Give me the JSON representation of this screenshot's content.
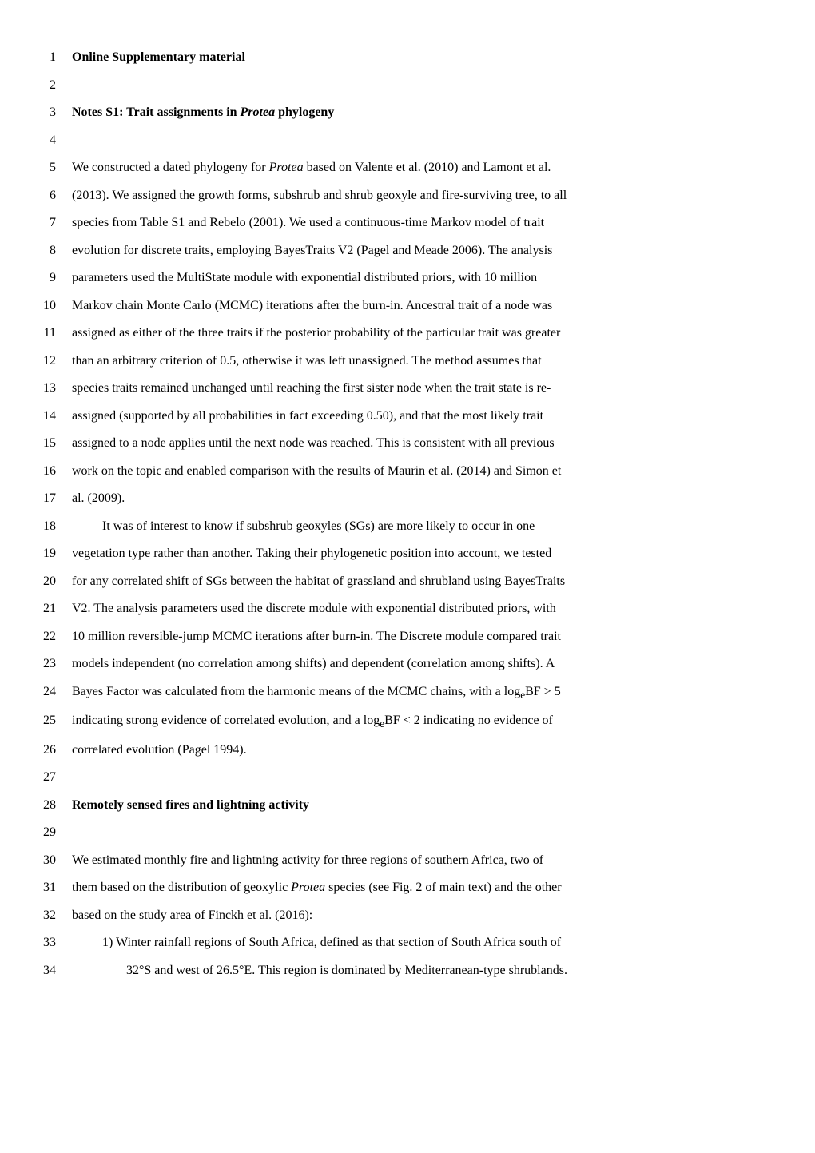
{
  "lines": [
    {
      "num": "1",
      "segments": [
        {
          "text": "Online Supplementary material",
          "bold": true
        }
      ]
    },
    {
      "num": "2",
      "segments": []
    },
    {
      "num": "3",
      "segments": [
        {
          "text": "Notes S1: Trait assignments in ",
          "bold": true
        },
        {
          "text": "Protea",
          "bold": true,
          "italic": true
        },
        {
          "text": " phylogeny",
          "bold": true
        }
      ]
    },
    {
      "num": "4",
      "segments": []
    },
    {
      "num": "5",
      "segments": [
        {
          "text": "We constructed a dated phylogeny for "
        },
        {
          "text": "Protea",
          "italic": true
        },
        {
          "text": " based on Valente et al. (2010) and Lamont et al."
        }
      ]
    },
    {
      "num": "6",
      "segments": [
        {
          "text": "(2013). We assigned the growth forms, subshrub and shrub geoxyle and fire-surviving tree, to all"
        }
      ]
    },
    {
      "num": "7",
      "segments": [
        {
          "text": "species from Table S1 and Rebelo (2001). We used a continuous-time Markov model of trait"
        }
      ]
    },
    {
      "num": "8",
      "segments": [
        {
          "text": "evolution for discrete traits, employing BayesTraits V2 (Pagel and Meade 2006). The analysis"
        }
      ]
    },
    {
      "num": "9",
      "segments": [
        {
          "text": "parameters used the MultiState module with exponential distributed priors, with 10 million"
        }
      ]
    },
    {
      "num": "10",
      "segments": [
        {
          "text": "Markov chain Monte Carlo (MCMC) iterations after the burn-in. Ancestral trait of a node was"
        }
      ]
    },
    {
      "num": "11",
      "segments": [
        {
          "text": "assigned as either of the three traits if the posterior probability of the particular trait was greater"
        }
      ]
    },
    {
      "num": "12",
      "segments": [
        {
          "text": "than an arbitrary criterion of 0.5, otherwise it was left unassigned. The method assumes that"
        }
      ]
    },
    {
      "num": "13",
      "segments": [
        {
          "text": "species traits remained unchanged until reaching the first sister node when the trait state is re-"
        }
      ]
    },
    {
      "num": "14",
      "segments": [
        {
          "text": "assigned (supported by all probabilities in fact exceeding 0.50), and that the most likely trait"
        }
      ]
    },
    {
      "num": "15",
      "segments": [
        {
          "text": "assigned to a node applies until the next node was reached. This is consistent with all previous"
        }
      ]
    },
    {
      "num": "16",
      "segments": [
        {
          "text": "work on the topic and enabled comparison with the results of Maurin et al. (2014) and Simon et"
        }
      ]
    },
    {
      "num": "17",
      "segments": [
        {
          "text": "al. (2009)."
        }
      ]
    },
    {
      "num": "18",
      "segments": [
        {
          "text": "It was of interest to know if subshrub geoxyles (SGs) are more likely to occur in one"
        }
      ],
      "indent": 1
    },
    {
      "num": "19",
      "segments": [
        {
          "text": "vegetation type rather than another. Taking their phylogenetic position into account, we tested"
        }
      ]
    },
    {
      "num": "20",
      "segments": [
        {
          "text": "for any correlated shift of SGs between the habitat of grassland and shrubland using BayesTraits"
        }
      ]
    },
    {
      "num": "21",
      "segments": [
        {
          "text": "V2. The analysis parameters used the discrete module with exponential distributed priors, with"
        }
      ]
    },
    {
      "num": "22",
      "segments": [
        {
          "text": "10 million reversible-jump MCMC iterations after burn-in. The Discrete module compared trait"
        }
      ]
    },
    {
      "num": "23",
      "segments": [
        {
          "text": "models independent (no correlation among shifts) and dependent (correlation among shifts). A"
        }
      ]
    },
    {
      "num": "24",
      "segments": [
        {
          "text": "Bayes Factor was calculated from the harmonic means of the MCMC chains, with a log"
        },
        {
          "text": "e",
          "sub": true
        },
        {
          "text": "BF > 5"
        }
      ]
    },
    {
      "num": "25",
      "segments": [
        {
          "text": "indicating strong evidence of correlated evolution, and a log"
        },
        {
          "text": "e",
          "sub": true
        },
        {
          "text": "BF < 2 indicating no evidence of"
        }
      ]
    },
    {
      "num": "26",
      "segments": [
        {
          "text": "correlated evolution (Pagel 1994)."
        }
      ]
    },
    {
      "num": "27",
      "segments": []
    },
    {
      "num": "28",
      "segments": [
        {
          "text": "Remotely sensed fires and lightning activity",
          "bold": true
        }
      ]
    },
    {
      "num": "29",
      "segments": []
    },
    {
      "num": "30",
      "segments": [
        {
          "text": "We estimated monthly fire and lightning activity for three regions of southern Africa, two of"
        }
      ]
    },
    {
      "num": "31",
      "segments": [
        {
          "text": "them based on the distribution of geoxylic "
        },
        {
          "text": "Protea",
          "italic": true
        },
        {
          "text": " species (see Fig. 2 of main text) and the other"
        }
      ]
    },
    {
      "num": "32",
      "segments": [
        {
          "text": "based on the study area of Finckh et al. (2016):"
        }
      ]
    },
    {
      "num": "33",
      "segments": [
        {
          "text": "1)  Winter rainfall regions of South Africa, defined as that section of South Africa south of"
        }
      ],
      "indent": 1
    },
    {
      "num": "34",
      "segments": [
        {
          "text": "32°S and west of 26.5°E. This region is dominated by Mediterranean-type shrublands."
        }
      ],
      "indent": 2
    }
  ]
}
